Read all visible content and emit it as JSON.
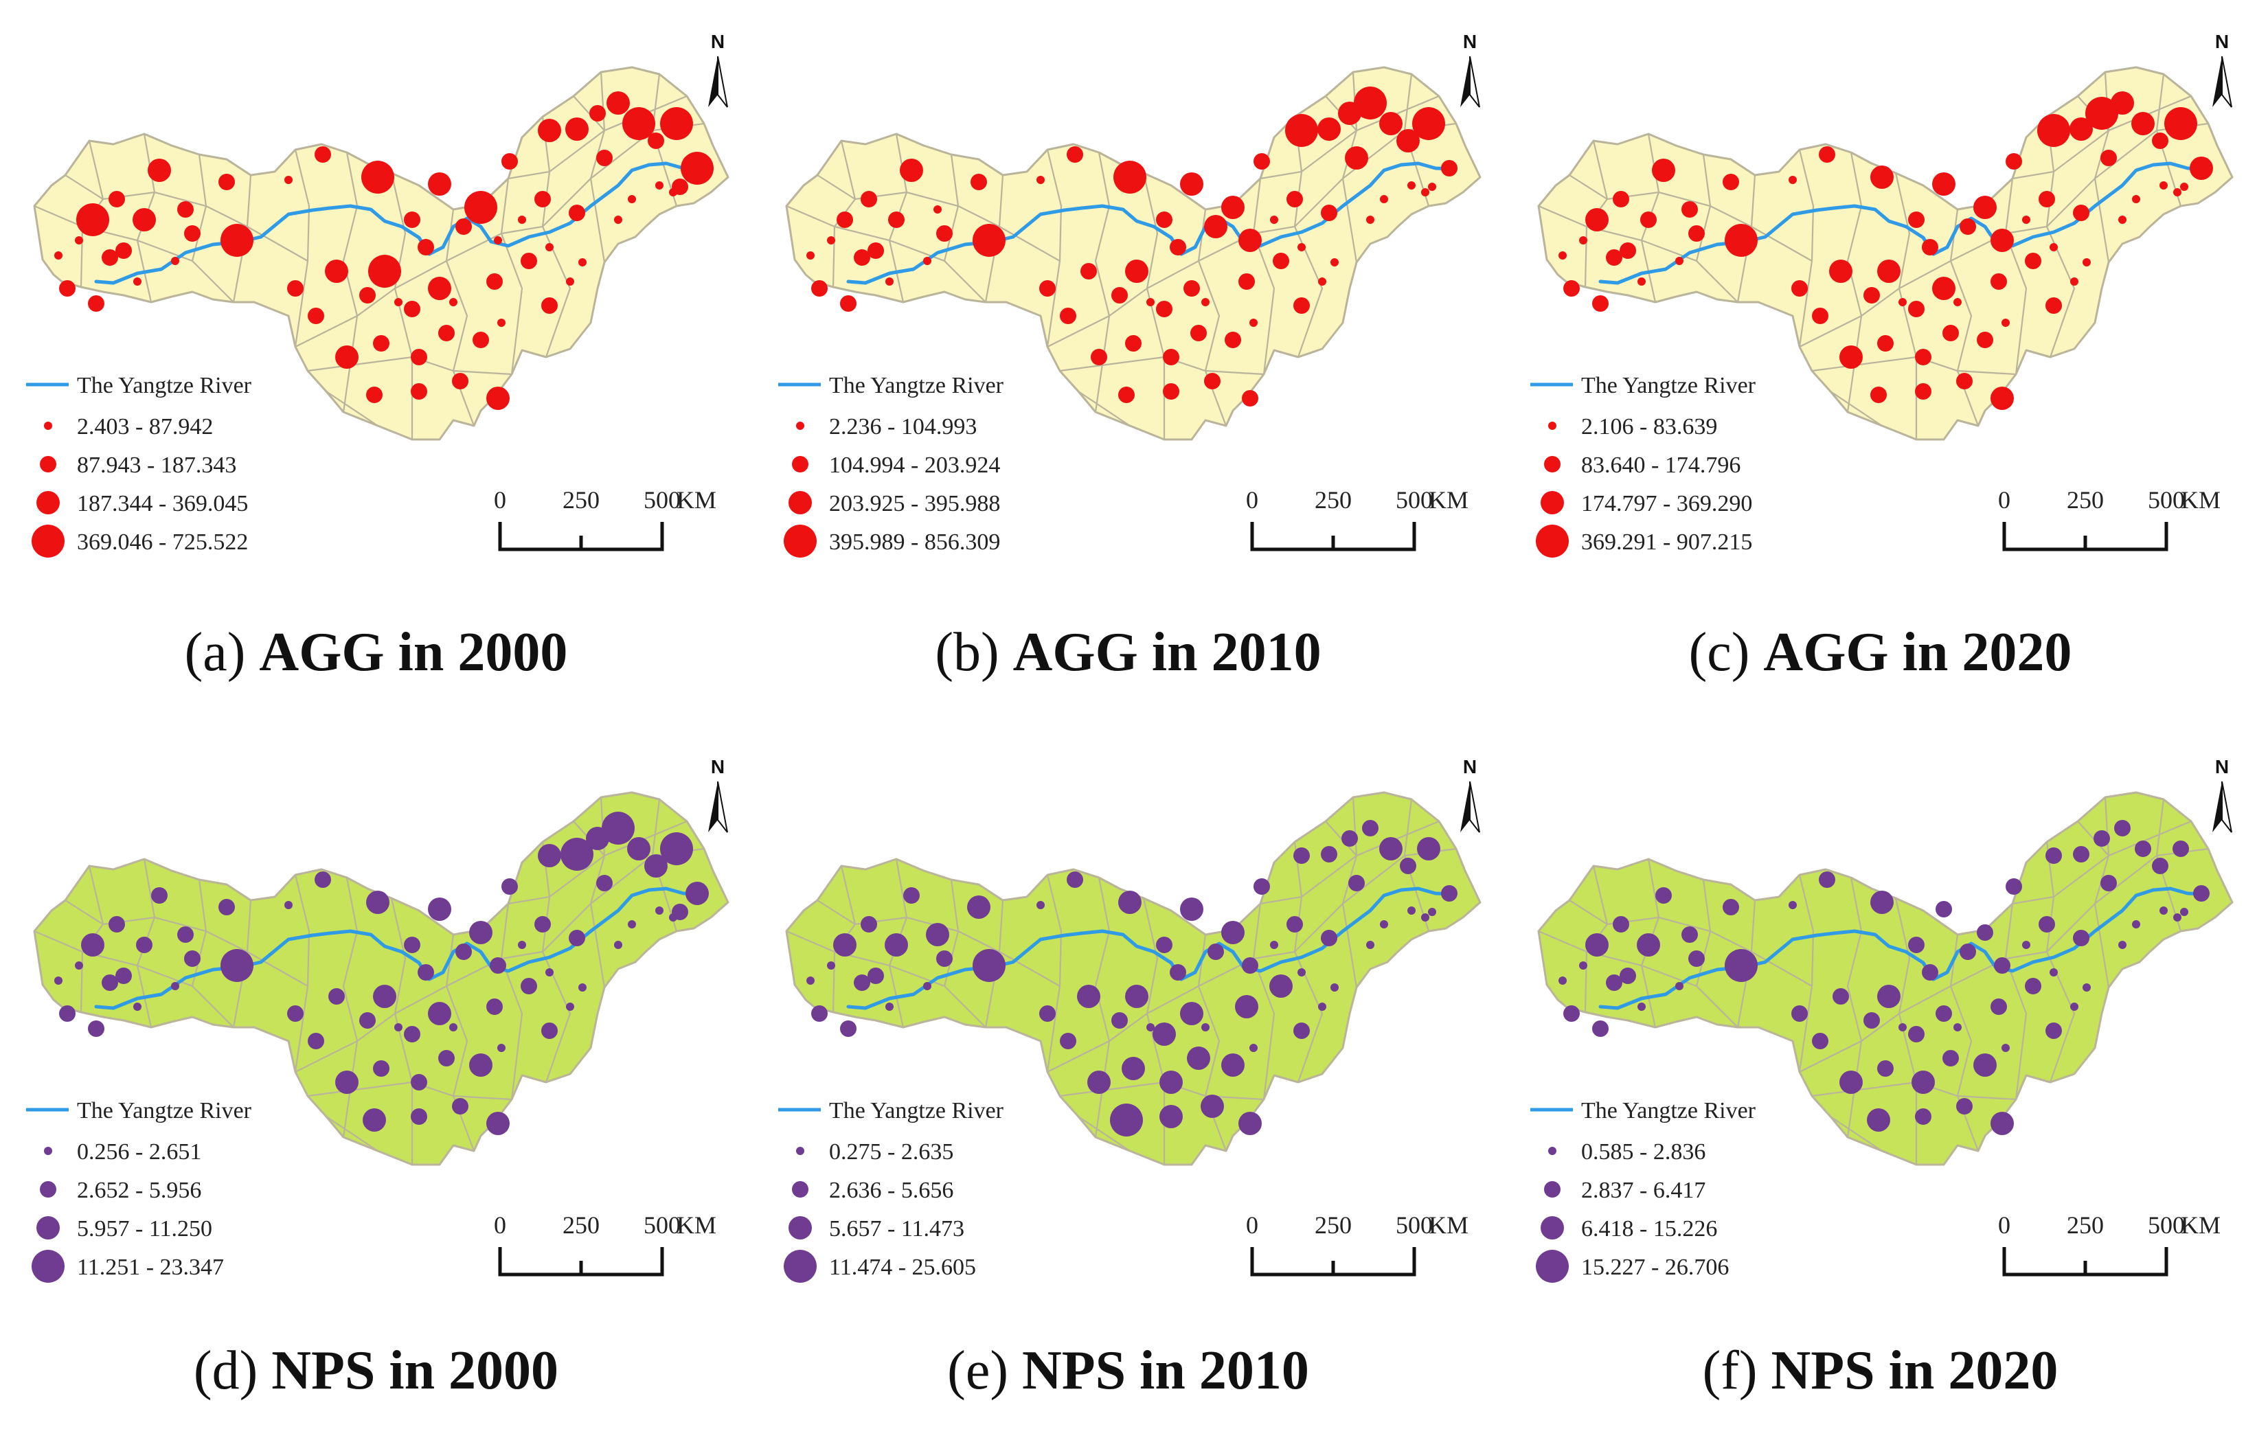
{
  "river_label": "The Yangtze River",
  "north_label": "N",
  "scale": {
    "ticks": [
      "0",
      "250",
      "500"
    ],
    "unit": "KM"
  },
  "colors": {
    "agg_fill": "#fbf5c0",
    "nps_fill": "#c6e35a",
    "boundary": "#b9b49a",
    "river": "#2f9be6",
    "agg_dot": "#ee1111",
    "nps_dot": "#6f3c92"
  },
  "panels": [
    {
      "id": "a",
      "letter": "a",
      "title": "AGG in 2000",
      "kind": "agg",
      "legend": [
        "2.403 - 87.942",
        "87.943 - 187.343",
        "187.344 - 369.045",
        "369.046 - 725.522"
      ]
    },
    {
      "id": "b",
      "letter": "b",
      "title": "AGG in 2010",
      "kind": "agg",
      "legend": [
        "2.236 - 104.993",
        "104.994 - 203.924",
        "203.925 - 395.988",
        "395.989 - 856.309"
      ]
    },
    {
      "id": "c",
      "letter": "c",
      "title": "AGG in 2020",
      "kind": "agg",
      "legend": [
        "2.106 - 83.639",
        "83.640 - 174.796",
        "174.797 - 369.290",
        "369.291 - 907.215"
      ]
    },
    {
      "id": "d",
      "letter": "d",
      "title": "NPS in 2000",
      "kind": "nps",
      "legend": [
        "0.256 - 2.651",
        "2.652 - 5.956",
        "5.957 - 11.250",
        "11.251 - 23.347"
      ]
    },
    {
      "id": "e",
      "letter": "e",
      "title": "NPS in 2010",
      "kind": "nps",
      "legend": [
        "0.275 - 2.635",
        "2.636 - 5.656",
        "5.657 - 11.473",
        "11.474 - 25.605"
      ]
    },
    {
      "id": "f",
      "letter": "f",
      "title": "NPS in 2020",
      "kind": "nps",
      "legend": [
        "0.585 - 2.836",
        "2.837 - 6.417",
        "6.418 - 15.226",
        "15.227 - 26.706"
      ]
    }
  ]
}
